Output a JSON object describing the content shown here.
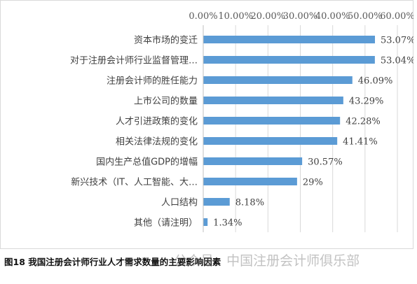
{
  "caption": "图18 我国注册会计师行业人才需求数量的主要影响因素",
  "watermark": "公众号 · 中国注册会计师俱乐部",
  "chart_data": {
    "type": "bar",
    "orientation": "horizontal",
    "title": "",
    "xlabel": "",
    "ylabel": "",
    "xlim": [
      0,
      60
    ],
    "ticks": [
      "0.00%",
      "10.00%",
      "20.00%",
      "30.00%",
      "40.00%",
      "50.00%",
      "60.00%"
    ],
    "axis_position": "top",
    "grid": true,
    "color": "#5b9bd5",
    "categories": [
      "资本市场的变迁",
      "对于注册会计师行业监督管理…",
      "注册会计师的胜任能力",
      "上市公司的数量",
      "人才引进政策的变化",
      "相关法律法规的变化",
      "国内生产总值GDP的增幅",
      "新兴技术（IT、人工智能、大…",
      "人口结构",
      "其他（请注明）"
    ],
    "values": [
      53.07,
      53.04,
      46.09,
      43.29,
      42.28,
      41.41,
      30.57,
      29,
      8.18,
      1.34
    ],
    "value_labels": [
      "53.07%",
      "53.04%",
      "46.09%",
      "43.29%",
      "42.28%",
      "41.41%",
      "30.57%",
      "29%",
      "8.18%",
      "1.34%"
    ]
  }
}
